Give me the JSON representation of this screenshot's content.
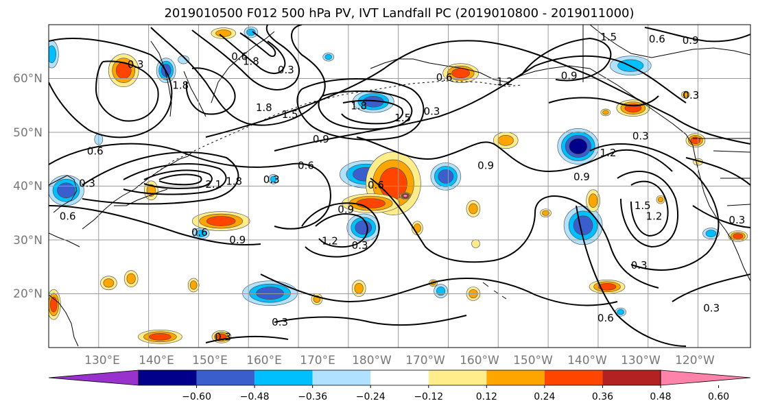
{
  "title": "2019010500 F012 500 hPa PV, IVT Landfall PC (2019010800 - 2019011000)",
  "lat_labels": [
    "20°N",
    "30°N",
    "40°N",
    "50°N",
    "60°N"
  ],
  "lon_labels": [
    "130°E",
    "140°E",
    "150°E",
    "160°E",
    "170°E",
    "180°W",
    "170°W",
    "160°W",
    "150°W",
    "140°W",
    "130°W",
    "120°W"
  ],
  "colorbar": {
    "ticks": [
      "−0.60",
      "−0.48",
      "−0.36",
      "−0.24",
      "−0.12",
      "0.12",
      "0.24",
      "0.36",
      "0.48",
      "0.60"
    ],
    "colors": [
      "#9932cc",
      "#00008b",
      "#3a5fcd",
      "#00bfff",
      "#b0e2ff",
      "#ffffff",
      "#ffec8b",
      "#ffa500",
      "#ff4500",
      "#b22222",
      "#ff82ab"
    ]
  },
  "contour_labels": [
    {
      "text": "0.3",
      "lon": 137.4,
      "lat": 62.6
    },
    {
      "text": "1.8",
      "lon": 146.4,
      "lat": 58.7
    },
    {
      "text": "0.6",
      "lon": 158.2,
      "lat": 64.1
    },
    {
      "text": "1.8",
      "lon": 160.5,
      "lat": 63.2
    },
    {
      "text": "1.8",
      "lon": 163.1,
      "lat": 54.6
    },
    {
      "text": "1.5",
      "lon": 168.3,
      "lat": 53.3
    },
    {
      "text": "0.3",
      "lon": 167.5,
      "lat": 61.6
    },
    {
      "text": "1.8",
      "lon": 182.1,
      "lat": 54.9
    },
    {
      "text": "1.5",
      "lon": 190.9,
      "lat": 52.7
    },
    {
      "text": "0.3",
      "lon": 196.7,
      "lat": 53.9
    },
    {
      "text": "0.6",
      "lon": 199.2,
      "lat": 60.2
    },
    {
      "text": "1.2",
      "lon": 211.3,
      "lat": 59.4
    },
    {
      "text": "1.5",
      "lon": 232.1,
      "lat": 67.7
    },
    {
      "text": "0.6",
      "lon": 241.8,
      "lat": 67.3
    },
    {
      "text": "0.9",
      "lon": 248.5,
      "lat": 67.1
    },
    {
      "text": "0.9",
      "lon": 224.2,
      "lat": 60.5
    },
    {
      "text": "0.3",
      "lon": 248.6,
      "lat": 56.9
    },
    {
      "text": "0.3",
      "lon": 238.5,
      "lat": 49.3
    },
    {
      "text": "0.6",
      "lon": 129.3,
      "lat": 46.5
    },
    {
      "text": "0.3",
      "lon": 127.7,
      "lat": 40.5
    },
    {
      "text": "0.6",
      "lon": 123.8,
      "lat": 34.4
    },
    {
      "text": "2.1",
      "lon": 153.0,
      "lat": 40.3
    },
    {
      "text": "1.8",
      "lon": 157.1,
      "lat": 40.9
    },
    {
      "text": "0.3",
      "lon": 164.6,
      "lat": 41.2
    },
    {
      "text": "0.6",
      "lon": 171.5,
      "lat": 43.8
    },
    {
      "text": "0.9",
      "lon": 174.5,
      "lat": 48.7
    },
    {
      "text": "0.6",
      "lon": 150.2,
      "lat": 31.4
    },
    {
      "text": "0.9",
      "lon": 157.8,
      "lat": 30.0
    },
    {
      "text": "0.6",
      "lon": 185.5,
      "lat": 40.2
    },
    {
      "text": "0.9",
      "lon": 179.5,
      "lat": 35.7
    },
    {
      "text": "1.2",
      "lon": 176.3,
      "lat": 29.8
    },
    {
      "text": "0.3",
      "lon": 182.3,
      "lat": 29.0
    },
    {
      "text": "0.9",
      "lon": 207.5,
      "lat": 43.8
    },
    {
      "text": "1.2",
      "lon": 232.0,
      "lat": 46.2
    },
    {
      "text": "0.9",
      "lon": 226.7,
      "lat": 41.7
    },
    {
      "text": "1.5",
      "lon": 238.9,
      "lat": 36.4
    },
    {
      "text": "1.2",
      "lon": 241.2,
      "lat": 34.4
    },
    {
      "text": "0.3",
      "lon": 257.8,
      "lat": 33.7
    },
    {
      "text": "0.3",
      "lon": 238.2,
      "lat": 25.3
    },
    {
      "text": "0.3",
      "lon": 252.7,
      "lat": 17.3
    },
    {
      "text": "0.6",
      "lon": 231.5,
      "lat": 15.5
    },
    {
      "text": "0.3",
      "lon": 166.3,
      "lat": 14.7
    },
    {
      "text": "0.3",
      "lon": 154.9,
      "lat": 12.0
    }
  ],
  "ivt_pc_blobs": [
    {
      "lon": 135.0,
      "lat": 61.5,
      "rx": 22,
      "ry": 24,
      "level": 0.42
    },
    {
      "lon": 143.5,
      "lat": 61.5,
      "rx": 14,
      "ry": 18,
      "level": -0.4
    },
    {
      "lon": 123.5,
      "lat": 39.2,
      "rx": 26,
      "ry": 22,
      "level": -0.45
    },
    {
      "lon": 120.6,
      "lat": 64.5,
      "rx": 10,
      "ry": 20,
      "level": -0.3
    },
    {
      "lon": 140.5,
      "lat": 39.2,
      "rx": 10,
      "ry": 14,
      "level": 0.3
    },
    {
      "lon": 154.5,
      "lat": 33.5,
      "rx": 42,
      "ry": 14,
      "level": 0.4
    },
    {
      "lon": 147.0,
      "lat": 63.5,
      "rx": 8,
      "ry": 6,
      "level": -0.22
    },
    {
      "lon": 155.0,
      "lat": 68.4,
      "rx": 18,
      "ry": 8,
      "level": 0.3
    },
    {
      "lon": 183.5,
      "lat": 42.2,
      "rx": 38,
      "ry": 20,
      "level": -0.44
    },
    {
      "lon": 189.0,
      "lat": 40.5,
      "rx": 40,
      "ry": 46,
      "level": 0.44
    },
    {
      "lon": 184.5,
      "lat": 36.8,
      "rx": 42,
      "ry": 14,
      "level": 0.4
    },
    {
      "lon": 191.4,
      "lat": 38.2,
      "rx": 8,
      "ry": 5,
      "level": 0.62
    },
    {
      "lon": 183.0,
      "lat": 32.3,
      "rx": 24,
      "ry": 20,
      "level": -0.4
    },
    {
      "lon": 199.5,
      "lat": 41.8,
      "rx": 22,
      "ry": 20,
      "level": -0.36
    },
    {
      "lon": 202.5,
      "lat": 61.0,
      "rx": 26,
      "ry": 14,
      "level": 0.42
    },
    {
      "lon": 185.0,
      "lat": 55.7,
      "rx": 30,
      "ry": 16,
      "level": -0.38
    },
    {
      "lon": 211.5,
      "lat": 48.5,
      "rx": 18,
      "ry": 12,
      "level": 0.34
    },
    {
      "lon": 226.0,
      "lat": 47.4,
      "rx": 30,
      "ry": 26,
      "level": -0.48
    },
    {
      "lon": 227.0,
      "lat": 32.7,
      "rx": 28,
      "ry": 28,
      "level": -0.38
    },
    {
      "lon": 236.5,
      "lat": 62.4,
      "rx": 30,
      "ry": 14,
      "level": -0.34
    },
    {
      "lon": 237.0,
      "lat": 54.5,
      "rx": 24,
      "ry": 12,
      "level": 0.4
    },
    {
      "lon": 249.5,
      "lat": 48.5,
      "rx": 14,
      "ry": 10,
      "level": 0.36
    },
    {
      "lon": 231.8,
      "lat": 21.3,
      "rx": 26,
      "ry": 10,
      "level": 0.4
    },
    {
      "lon": 164.3,
      "lat": 20.1,
      "rx": 40,
      "ry": 18,
      "level": -0.38
    },
    {
      "lon": 142.3,
      "lat": 12.0,
      "rx": 32,
      "ry": 10,
      "level": 0.4
    },
    {
      "lon": 121.0,
      "lat": 18.0,
      "rx": 10,
      "ry": 22,
      "level": 0.4
    },
    {
      "lon": 154.6,
      "lat": 12.0,
      "rx": 14,
      "ry": 9,
      "level": 0.36
    },
    {
      "lon": 205.0,
      "lat": 20.0,
      "rx": 10,
      "ry": 10,
      "level": 0.34
    },
    {
      "lon": 193.8,
      "lat": 32.2,
      "rx": 8,
      "ry": 10,
      "level": 0.3
    },
    {
      "lon": 182.1,
      "lat": 21.0,
      "rx": 10,
      "ry": 12,
      "level": 0.3
    },
    {
      "lon": 198.5,
      "lat": 20.5,
      "rx": 10,
      "ry": 10,
      "level": -0.28
    },
    {
      "lon": 229.0,
      "lat": 37.3,
      "rx": 10,
      "ry": 16,
      "level": 0.32
    },
    {
      "lon": 205.0,
      "lat": 35.8,
      "rx": 10,
      "ry": 12,
      "level": 0.28
    },
    {
      "lon": 258.0,
      "lat": 30.7,
      "rx": 14,
      "ry": 8,
      "level": 0.4
    },
    {
      "lon": 252.6,
      "lat": 31.2,
      "rx": 12,
      "ry": 8,
      "level": -0.3
    },
    {
      "lon": 234.5,
      "lat": 16.6,
      "rx": 8,
      "ry": 6,
      "level": -0.3
    },
    {
      "lon": 150.5,
      "lat": 31.2,
      "rx": 12,
      "ry": 8,
      "level": -0.28
    },
    {
      "lon": 136.5,
      "lat": 22.8,
      "rx": 10,
      "ry": 12,
      "level": 0.3
    },
    {
      "lon": 149.0,
      "lat": 21.6,
      "rx": 8,
      "ry": 10,
      "level": 0.32
    },
    {
      "lon": 173.7,
      "lat": 19.0,
      "rx": 8,
      "ry": 8,
      "level": 0.3
    },
    {
      "lon": 132.0,
      "lat": 22.0,
      "rx": 12,
      "ry": 10,
      "level": 0.28
    },
    {
      "lon": 160.5,
      "lat": 68.6,
      "rx": 10,
      "ry": 8,
      "level": -0.26
    },
    {
      "lon": 176.0,
      "lat": 64.0,
      "rx": 8,
      "ry": 6,
      "level": -0.26
    },
    {
      "lon": 165.0,
      "lat": 41.3,
      "rx": 7,
      "ry": 7,
      "level": -0.26
    },
    {
      "lon": 130.0,
      "lat": 48.7,
      "rx": 6,
      "ry": 8,
      "level": -0.22
    },
    {
      "lon": 250.0,
      "lat": 44.5,
      "rx": 7,
      "ry": 5,
      "level": 0.22
    },
    {
      "lon": 231.5,
      "lat": 53.7,
      "rx": 7,
      "ry": 5,
      "level": 0.3
    },
    {
      "lon": 247.5,
      "lat": 57.0,
      "rx": 6,
      "ry": 5,
      "level": 0.28
    },
    {
      "lon": 242.5,
      "lat": 37.5,
      "rx": 6,
      "ry": 6,
      "level": 0.24
    },
    {
      "lon": 205.5,
      "lat": 29.3,
      "rx": 6,
      "ry": 6,
      "level": 0.22
    },
    {
      "lon": 197.0,
      "lat": 22.0,
      "rx": 6,
      "ry": 5,
      "level": 0.26
    },
    {
      "lon": 219.5,
      "lat": 35.0,
      "rx": 8,
      "ry": 6,
      "level": 0.28
    }
  ]
}
